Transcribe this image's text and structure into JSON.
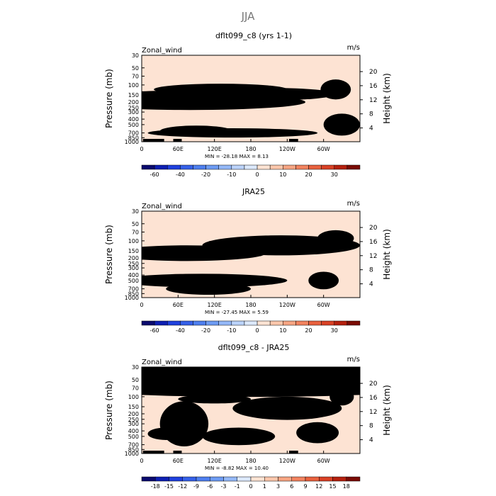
{
  "title": "JJA",
  "chart_data": [
    {
      "type": "heatmap",
      "title": "dflt099_c8 (yrs 1-1)",
      "variable": "Zonal_wind",
      "units": "m/s",
      "ylabel": "Pressure (mb)",
      "ylabel_right": "Height (km)",
      "ylim": [
        1000,
        30
      ],
      "yticks": [
        "30",
        "50",
        "70",
        "100",
        "150",
        "200",
        "250",
        "300",
        "400",
        "500",
        "700",
        "850",
        "1000"
      ],
      "height_ticks": [
        "4",
        "8",
        "12",
        "16",
        "20"
      ],
      "xlim": [
        0,
        360
      ],
      "xticks": [
        "0",
        "60E",
        "120E",
        "180",
        "120W",
        "60W"
      ],
      "stats": "MIN = -28.18   MAX =  8.13",
      "colorbar_levels": [
        -70,
        -60,
        -50,
        -40,
        -30,
        -20,
        -15,
        -10,
        -5,
        0,
        5,
        10,
        15,
        20,
        25,
        30,
        35
      ],
      "colorbar_labels": [
        "-60",
        "-40",
        "-20",
        "-10",
        "0",
        "10",
        "20",
        "30"
      ],
      "colorbar_colors": [
        "#0a0a6e",
        "#0d1fb2",
        "#1f40dd",
        "#3560e8",
        "#4e7fef",
        "#6d9bf3",
        "#94b8f7",
        "#bbd3fa",
        "#dce9fd",
        "#fde3d3",
        "#fbc7ac",
        "#f7a583",
        "#f2835f",
        "#e8613e",
        "#d94125",
        "#b5200e",
        "#7a0b04"
      ]
    },
    {
      "type": "heatmap",
      "title": "JRA25",
      "variable": "Zonal_wind",
      "units": "m/s",
      "ylabel": "Pressure (mb)",
      "ylabel_right": "Height (km)",
      "ylim": [
        1000,
        30
      ],
      "yticks": [
        "30",
        "50",
        "70",
        "100",
        "150",
        "200",
        "250",
        "300",
        "400",
        "500",
        "700",
        "850",
        "1000"
      ],
      "height_ticks": [
        "4",
        "8",
        "12",
        "16",
        "20"
      ],
      "xlim": [
        0,
        360
      ],
      "xticks": [
        "0",
        "60E",
        "120E",
        "180",
        "120W",
        "60W"
      ],
      "stats": "MIN = -27.45   MAX =  5.59",
      "colorbar_levels": [
        -70,
        -60,
        -50,
        -40,
        -30,
        -20,
        -15,
        -10,
        -5,
        0,
        5,
        10,
        15,
        20,
        25,
        30,
        35
      ],
      "colorbar_labels": [
        "-60",
        "-40",
        "-20",
        "-10",
        "0",
        "10",
        "20",
        "30"
      ],
      "colorbar_colors": [
        "#0a0a6e",
        "#0d1fb2",
        "#1f40dd",
        "#3560e8",
        "#4e7fef",
        "#6d9bf3",
        "#94b8f7",
        "#bbd3fa",
        "#dce9fd",
        "#fde3d3",
        "#fbc7ac",
        "#f7a583",
        "#f2835f",
        "#e8613e",
        "#d94125",
        "#b5200e",
        "#7a0b04"
      ]
    },
    {
      "type": "heatmap",
      "title": "dflt099_c8 - JRA25",
      "variable": "Zonal_wind",
      "units": "m/s",
      "ylabel": "Pressure (mb)",
      "ylabel_right": "Height (km)",
      "ylim": [
        1000,
        30
      ],
      "yticks": [
        "30",
        "50",
        "70",
        "100",
        "150",
        "200",
        "250",
        "300",
        "400",
        "500",
        "700",
        "850",
        "1000"
      ],
      "height_ticks": [
        "4",
        "8",
        "12",
        "16",
        "20"
      ],
      "xlim": [
        0,
        360
      ],
      "xticks": [
        "0",
        "60E",
        "120E",
        "180",
        "120W",
        "60W"
      ],
      "stats": "MIN = -8.82   MAX = 10.40",
      "colorbar_levels": [
        -21,
        -18,
        -15,
        -12,
        -9,
        -6,
        -3,
        -1,
        0,
        1,
        3,
        6,
        9,
        12,
        15,
        18,
        21
      ],
      "colorbar_labels": [
        "-18",
        "-15",
        "-12",
        "-9",
        "-6",
        "-3",
        "-1",
        "0",
        "1",
        "3",
        "6",
        "9",
        "12",
        "15",
        "18"
      ],
      "colorbar_colors": [
        "#0a0a6e",
        "#0d1fb2",
        "#1f40dd",
        "#3560e8",
        "#4e7fef",
        "#6d9bf3",
        "#94b8f7",
        "#dce9fd",
        "#fde3d3",
        "#fbc7ac",
        "#f7a583",
        "#f2835f",
        "#e8613e",
        "#d94125",
        "#b5200e",
        "#7a0b04"
      ]
    }
  ]
}
